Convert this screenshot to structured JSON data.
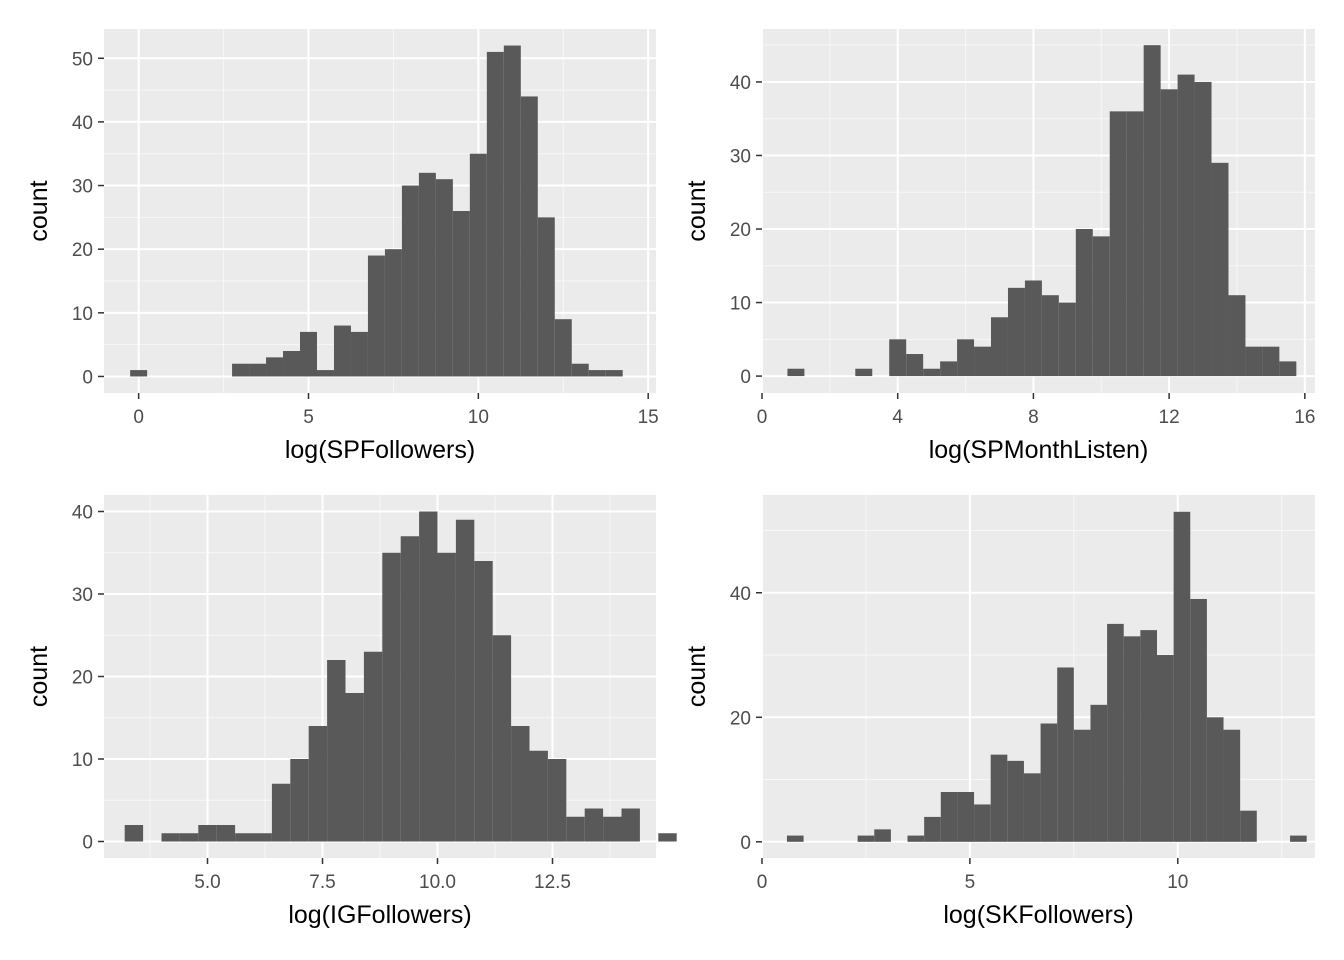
{
  "colors": {
    "panel_background": "#ebebeb",
    "grid_major": "#ffffff",
    "bar_fill": "#595959",
    "tick_text": "#4d4d4d"
  },
  "chart_data": [
    {
      "type": "bar",
      "subtype": "histogram",
      "xlabel": "log(SPFollowers)",
      "ylabel": "count",
      "grid": true,
      "xlim": [
        -1.02,
        15.23
      ],
      "ylim": [
        -2.6,
        54.6
      ],
      "xticks": [
        0,
        5,
        10,
        15
      ],
      "xtick_labels": [
        "0",
        "5",
        "10",
        "15"
      ],
      "yticks": [
        0,
        10,
        20,
        30,
        40,
        50
      ],
      "ytick_labels": [
        "0",
        "10",
        "20",
        "30",
        "40",
        "50"
      ],
      "bins": [
        {
          "x0": -0.25,
          "x1": 0.25,
          "count": 1
        },
        {
          "x0": 2.75,
          "x1": 3.25,
          "count": 2
        },
        {
          "x0": 3.25,
          "x1": 3.75,
          "count": 2
        },
        {
          "x0": 3.75,
          "x1": 4.25,
          "count": 3
        },
        {
          "x0": 4.25,
          "x1": 4.75,
          "count": 4
        },
        {
          "x0": 4.75,
          "x1": 5.25,
          "count": 7
        },
        {
          "x0": 5.25,
          "x1": 5.75,
          "count": 1
        },
        {
          "x0": 5.75,
          "x1": 6.25,
          "count": 8
        },
        {
          "x0": 6.25,
          "x1": 6.75,
          "count": 7
        },
        {
          "x0": 6.75,
          "x1": 7.25,
          "count": 19
        },
        {
          "x0": 7.25,
          "x1": 7.75,
          "count": 20
        },
        {
          "x0": 7.75,
          "x1": 8.25,
          "count": 30
        },
        {
          "x0": 8.25,
          "x1": 8.75,
          "count": 32
        },
        {
          "x0": 8.75,
          "x1": 9.25,
          "count": 31
        },
        {
          "x0": 9.25,
          "x1": 9.75,
          "count": 26
        },
        {
          "x0": 9.75,
          "x1": 10.25,
          "count": 35
        },
        {
          "x0": 10.25,
          "x1": 10.75,
          "count": 51
        },
        {
          "x0": 10.75,
          "x1": 11.25,
          "count": 52
        },
        {
          "x0": 11.25,
          "x1": 11.75,
          "count": 44
        },
        {
          "x0": 11.75,
          "x1": 12.25,
          "count": 25
        },
        {
          "x0": 12.25,
          "x1": 12.75,
          "count": 9
        },
        {
          "x0": 12.75,
          "x1": 13.25,
          "count": 2
        },
        {
          "x0": 13.25,
          "x1": 13.75,
          "count": 1
        },
        {
          "x0": 13.75,
          "x1": 14.25,
          "count": 1
        }
      ]
    },
    {
      "type": "bar",
      "subtype": "histogram",
      "xlabel": "log(SPMonthListen)",
      "ylabel": "count",
      "grid": true,
      "xlim": [
        0,
        16.3
      ],
      "ylim": [
        -2.3,
        47.2
      ],
      "xticks": [
        0,
        4,
        8,
        12,
        16
      ],
      "xtick_labels": [
        "0",
        "4",
        "8",
        "12",
        "16"
      ],
      "yticks": [
        0,
        10,
        20,
        30,
        40
      ],
      "ytick_labels": [
        "0",
        "10",
        "20",
        "30",
        "40"
      ],
      "bins": [
        {
          "x0": 0.75,
          "x1": 1.25,
          "count": 1
        },
        {
          "x0": 2.75,
          "x1": 3.25,
          "count": 1
        },
        {
          "x0": 3.75,
          "x1": 4.25,
          "count": 5
        },
        {
          "x0": 4.25,
          "x1": 4.75,
          "count": 3
        },
        {
          "x0": 4.75,
          "x1": 5.25,
          "count": 1
        },
        {
          "x0": 5.25,
          "x1": 5.75,
          "count": 2
        },
        {
          "x0": 5.75,
          "x1": 6.25,
          "count": 5
        },
        {
          "x0": 6.25,
          "x1": 6.75,
          "count": 4
        },
        {
          "x0": 6.75,
          "x1": 7.25,
          "count": 8
        },
        {
          "x0": 7.25,
          "x1": 7.75,
          "count": 12
        },
        {
          "x0": 7.75,
          "x1": 8.25,
          "count": 13
        },
        {
          "x0": 8.25,
          "x1": 8.75,
          "count": 11
        },
        {
          "x0": 8.75,
          "x1": 9.25,
          "count": 10
        },
        {
          "x0": 9.25,
          "x1": 9.75,
          "count": 20
        },
        {
          "x0": 9.75,
          "x1": 10.25,
          "count": 19
        },
        {
          "x0": 10.25,
          "x1": 10.75,
          "count": 36
        },
        {
          "x0": 10.75,
          "x1": 11.25,
          "count": 36
        },
        {
          "x0": 11.25,
          "x1": 11.75,
          "count": 45
        },
        {
          "x0": 11.75,
          "x1": 12.25,
          "count": 39
        },
        {
          "x0": 12.25,
          "x1": 12.75,
          "count": 41
        },
        {
          "x0": 12.75,
          "x1": 13.25,
          "count": 40
        },
        {
          "x0": 13.25,
          "x1": 13.75,
          "count": 29
        },
        {
          "x0": 13.75,
          "x1": 14.25,
          "count": 11
        },
        {
          "x0": 14.25,
          "x1": 14.75,
          "count": 4
        },
        {
          "x0": 14.75,
          "x1": 15.25,
          "count": 4
        },
        {
          "x0": 15.25,
          "x1": 15.75,
          "count": 2
        }
      ]
    },
    {
      "type": "bar",
      "subtype": "histogram",
      "xlabel": "log(IGFollowers)",
      "ylabel": "count",
      "grid": true,
      "xlim": [
        2.75,
        14.75
      ],
      "ylim": [
        -2.0,
        42.0
      ],
      "xticks": [
        5.0,
        7.5,
        10.0,
        12.5
      ],
      "xtick_labels": [
        "5.0",
        "7.5",
        "10.0",
        "12.5"
      ],
      "yticks": [
        0,
        10,
        20,
        30,
        40
      ],
      "ytick_labels": [
        "0",
        "10",
        "20",
        "30",
        "40"
      ],
      "bins": [
        {
          "x0": 3.2,
          "x1": 3.6,
          "count": 2
        },
        {
          "x0": 3.6,
          "x1": 4.0,
          "count": 0
        },
        {
          "x0": 4.0,
          "x1": 4.4,
          "count": 1
        },
        {
          "x0": 4.4,
          "x1": 4.8,
          "count": 1
        },
        {
          "x0": 4.8,
          "x1": 5.2,
          "count": 2
        },
        {
          "x0": 5.2,
          "x1": 5.6,
          "count": 2
        },
        {
          "x0": 5.6,
          "x1": 6.0,
          "count": 1
        },
        {
          "x0": 6.0,
          "x1": 6.4,
          "count": 1
        },
        {
          "x0": 6.4,
          "x1": 6.8,
          "count": 7
        },
        {
          "x0": 6.8,
          "x1": 7.2,
          "count": 10
        },
        {
          "x0": 7.2,
          "x1": 7.6,
          "count": 14
        },
        {
          "x0": 7.6,
          "x1": 8.0,
          "count": 22
        },
        {
          "x0": 8.0,
          "x1": 8.4,
          "count": 18
        },
        {
          "x0": 8.4,
          "x1": 8.8,
          "count": 23
        },
        {
          "x0": 8.8,
          "x1": 9.2,
          "count": 35
        },
        {
          "x0": 9.2,
          "x1": 9.6,
          "count": 37
        },
        {
          "x0": 9.6,
          "x1": 10.0,
          "count": 40
        },
        {
          "x0": 10.0,
          "x1": 10.4,
          "count": 35
        },
        {
          "x0": 10.4,
          "x1": 10.8,
          "count": 39
        },
        {
          "x0": 10.8,
          "x1": 11.2,
          "count": 34
        },
        {
          "x0": 11.2,
          "x1": 11.6,
          "count": 25
        },
        {
          "x0": 11.6,
          "x1": 12.0,
          "count": 14
        },
        {
          "x0": 12.0,
          "x1": 12.4,
          "count": 11
        },
        {
          "x0": 12.4,
          "x1": 12.8,
          "count": 10
        },
        {
          "x0": 12.8,
          "x1": 13.2,
          "count": 3
        },
        {
          "x0": 13.2,
          "x1": 13.6,
          "count": 4
        },
        {
          "x0": 13.6,
          "x1": 14.0,
          "count": 3
        },
        {
          "x0": 14.0,
          "x1": 14.4,
          "count": 4
        },
        {
          "x0": 14.4,
          "x1": 14.8,
          "count": 0
        },
        {
          "x0": 14.8,
          "x1": 15.2,
          "count": 1
        }
      ]
    },
    {
      "type": "bar",
      "subtype": "histogram",
      "xlabel": "log(SKFollowers)",
      "ylabel": "count",
      "grid": true,
      "xlim": [
        0,
        13.3
      ],
      "ylim": [
        -2.6,
        55.7
      ],
      "xticks": [
        0,
        5,
        10
      ],
      "xtick_labels": [
        "0",
        "5",
        "10"
      ],
      "yticks": [
        0,
        20,
        40
      ],
      "ytick_labels": [
        "0",
        "20",
        "40"
      ],
      "bins": [
        {
          "x0": 0.6,
          "x1": 1.0,
          "count": 1
        },
        {
          "x0": 2.3,
          "x1": 2.7,
          "count": 1
        },
        {
          "x0": 2.7,
          "x1": 3.1,
          "count": 2
        },
        {
          "x0": 3.5,
          "x1": 3.9,
          "count": 1
        },
        {
          "x0": 3.9,
          "x1": 4.3,
          "count": 4
        },
        {
          "x0": 4.3,
          "x1": 4.7,
          "count": 8
        },
        {
          "x0": 4.7,
          "x1": 5.1,
          "count": 8
        },
        {
          "x0": 5.1,
          "x1": 5.5,
          "count": 6
        },
        {
          "x0": 5.5,
          "x1": 5.9,
          "count": 14
        },
        {
          "x0": 5.9,
          "x1": 6.3,
          "count": 13
        },
        {
          "x0": 6.3,
          "x1": 6.7,
          "count": 11
        },
        {
          "x0": 6.7,
          "x1": 7.1,
          "count": 19
        },
        {
          "x0": 7.1,
          "x1": 7.5,
          "count": 28
        },
        {
          "x0": 7.5,
          "x1": 7.9,
          "count": 18
        },
        {
          "x0": 7.9,
          "x1": 8.3,
          "count": 22
        },
        {
          "x0": 8.3,
          "x1": 8.7,
          "count": 35
        },
        {
          "x0": 8.7,
          "x1": 9.1,
          "count": 33
        },
        {
          "x0": 9.1,
          "x1": 9.5,
          "count": 34
        },
        {
          "x0": 9.5,
          "x1": 9.9,
          "count": 30
        },
        {
          "x0": 9.9,
          "x1": 10.3,
          "count": 53
        },
        {
          "x0": 10.3,
          "x1": 10.7,
          "count": 39
        },
        {
          "x0": 10.7,
          "x1": 11.1,
          "count": 20
        },
        {
          "x0": 11.1,
          "x1": 11.5,
          "count": 18
        },
        {
          "x0": 11.5,
          "x1": 11.9,
          "count": 5
        },
        {
          "x0": 11.9,
          "x1": 12.3,
          "count": 0
        },
        {
          "x0": 12.3,
          "x1": 12.7,
          "count": 0
        },
        {
          "x0": 12.7,
          "x1": 13.1,
          "count": 1
        }
      ]
    }
  ]
}
